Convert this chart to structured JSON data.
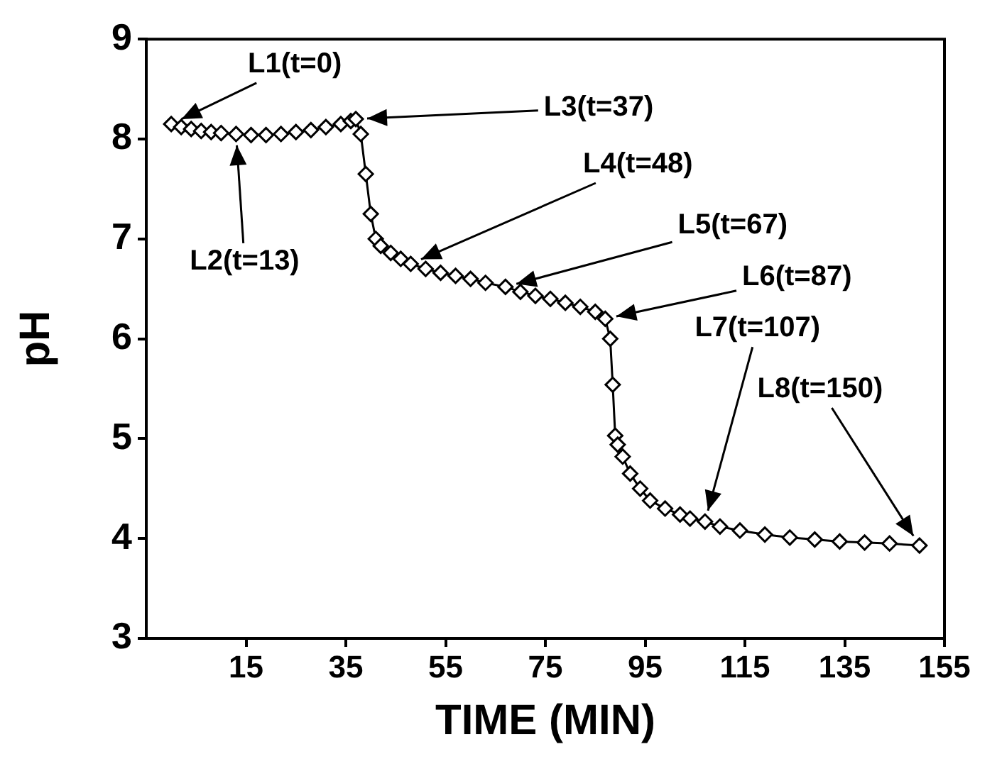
{
  "chart_data": {
    "type": "line",
    "xlabel": "TIME (MIN)",
    "ylabel": "pH",
    "x": [
      0,
      2,
      4,
      6,
      8,
      10,
      13,
      16,
      19,
      22,
      25,
      28,
      31,
      34,
      36,
      37,
      38,
      39,
      40,
      41,
      42,
      44,
      46,
      48,
      51,
      54,
      57,
      60,
      63,
      67,
      70,
      73,
      76,
      79,
      82,
      85,
      87,
      88,
      88.5,
      89,
      89.5,
      90.5,
      92,
      94,
      96,
      99,
      102,
      104,
      107,
      110,
      114,
      119,
      124,
      129,
      134,
      139,
      144,
      150
    ],
    "series": [
      {
        "color": "#000000",
        "values": [
          8.15,
          8.12,
          8.1,
          8.08,
          8.07,
          8.06,
          8.05,
          8.04,
          8.04,
          8.05,
          8.07,
          8.09,
          8.12,
          8.15,
          8.18,
          8.2,
          8.05,
          7.65,
          7.25,
          7.0,
          6.93,
          6.86,
          6.8,
          6.75,
          6.7,
          6.66,
          6.63,
          6.6,
          6.56,
          6.52,
          6.47,
          6.43,
          6.4,
          6.36,
          6.32,
          6.27,
          6.2,
          6.0,
          5.54,
          5.03,
          4.94,
          4.82,
          4.65,
          4.5,
          4.38,
          4.3,
          4.24,
          4.2,
          4.17,
          4.12,
          4.08,
          4.04,
          4.01,
          3.99,
          3.97,
          3.96,
          3.95,
          3.93
        ]
      }
    ],
    "xlim": [
      -5,
      155
    ],
    "xticks": [
      15,
      35,
      55,
      75,
      95,
      115,
      135,
      155
    ],
    "ylim": [
      3,
      9
    ],
    "yticks": [
      3,
      4,
      5,
      6,
      7,
      8,
      9
    ],
    "marker": "diamond",
    "line_style": "solid",
    "legend": false,
    "annotations": [
      {
        "text": "L1(t=0)",
        "x": 0,
        "y": 8.15
      },
      {
        "text": "L2(t=13)",
        "x": 13,
        "y": 8.05
      },
      {
        "text": "L3(t=37)",
        "x": 37,
        "y": 8.2
      },
      {
        "text": "L4(t=48)",
        "x": 48,
        "y": 6.75
      },
      {
        "text": "L5(t=67)",
        "x": 67,
        "y": 6.52
      },
      {
        "text": "L6(t=87)",
        "x": 87,
        "y": 6.2
      },
      {
        "text": "L7(t=107)",
        "x": 107,
        "y": 4.17
      },
      {
        "text": "L8(t=150)",
        "x": 150,
        "y": 3.93
      }
    ]
  }
}
